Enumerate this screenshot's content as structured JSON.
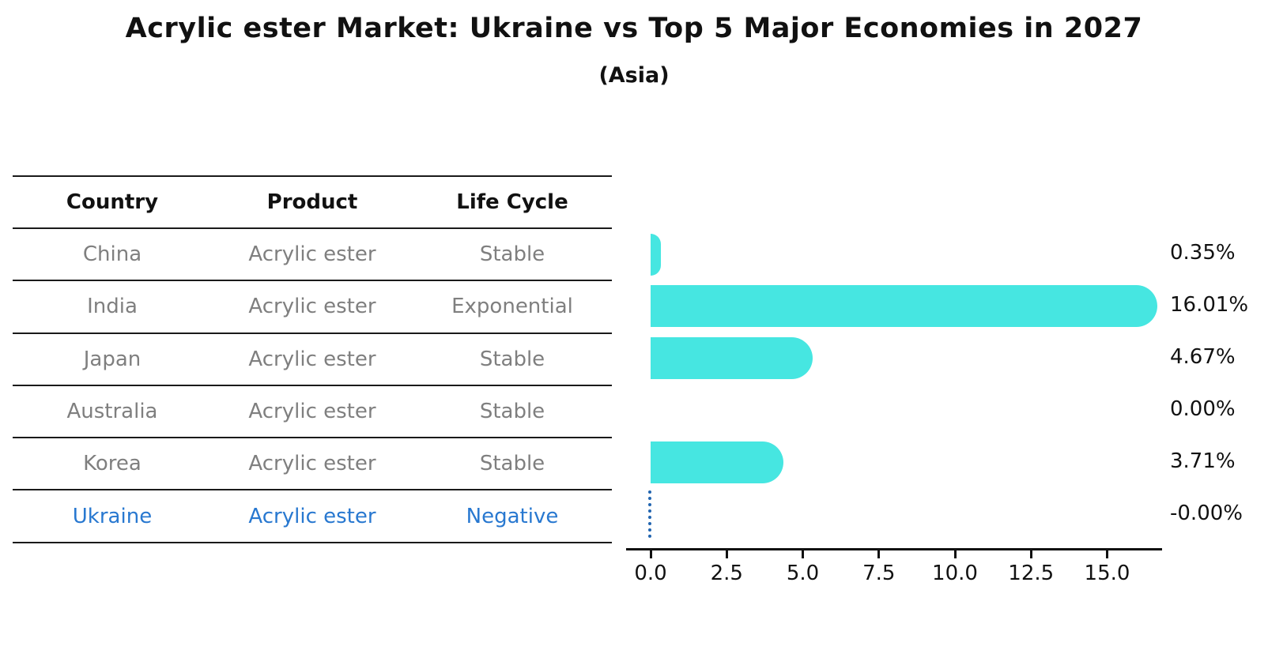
{
  "header": {
    "title": "Acrylic ester Market: Ukraine vs Top 5 Major Economies in 2027",
    "subtitle": "(Asia)"
  },
  "table": {
    "columns": [
      "Country",
      "Product",
      "Life Cycle"
    ],
    "rows": [
      {
        "country": "China",
        "product": "Acrylic ester",
        "life_cycle": "Stable",
        "highlight": false
      },
      {
        "country": "India",
        "product": "Acrylic ester",
        "life_cycle": "Exponential",
        "highlight": false
      },
      {
        "country": "Japan",
        "product": "Acrylic ester",
        "life_cycle": "Stable",
        "highlight": false
      },
      {
        "country": "Australia",
        "product": "Acrylic ester",
        "life_cycle": "Stable",
        "highlight": false
      },
      {
        "country": "Korea",
        "product": "Acrylic ester",
        "life_cycle": "Stable",
        "highlight": false
      },
      {
        "country": "Ukraine",
        "product": "Acrylic ester",
        "life_cycle": "Negative",
        "highlight": true
      }
    ]
  },
  "chart_data": {
    "type": "bar",
    "orientation": "horizontal",
    "title": "Acrylic ester Market: Ukraine vs Top 5 Major Economies in 2027",
    "subtitle": "(Asia)",
    "categories": [
      "China",
      "India",
      "Japan",
      "Australia",
      "Korea",
      "Ukraine"
    ],
    "values": [
      0.35,
      16.01,
      4.67,
      0.0,
      3.71,
      -0.0
    ],
    "value_labels": [
      "0.35%",
      "16.01%",
      "4.67%",
      "0.00%",
      "3.71%",
      "-0.00%"
    ],
    "highlight_index": 5,
    "x_ticks": [
      0.0,
      2.5,
      5.0,
      7.5,
      10.0,
      12.5,
      15.0
    ],
    "x_tick_labels": [
      "0.0",
      "2.5",
      "5.0",
      "7.5",
      "10.0",
      "12.5",
      "15.0"
    ],
    "xlim": [
      -0.8,
      16.9
    ],
    "grid": false,
    "legend": "none",
    "bar_color": "#46e6e1",
    "highlight_line_color": "#2265b0",
    "highlight_text_color": "#2878d0"
  },
  "colors": {
    "bar": "#46e6e1",
    "accent_blue": "#2878d0",
    "dotted_marker_blue": "#2265b0",
    "table_text_gray": "#7f7f7f",
    "axis_black": "#111111"
  }
}
